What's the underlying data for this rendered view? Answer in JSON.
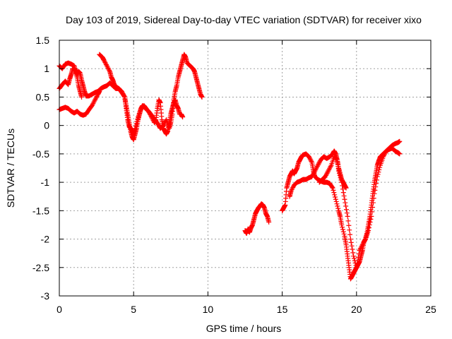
{
  "chart_data": {
    "type": "scatter",
    "title": "Day 103 of 2019, Sidereal Day-to-day VTEC variation (SDTVAR) for receiver xixo",
    "xlabel": "GPS time / hours",
    "ylabel": "SDTVAR / TECUs",
    "xlim": [
      0,
      25
    ],
    "ylim": [
      -3,
      1.5
    ],
    "xticks": [
      "0",
      "5",
      "10",
      "15",
      "20",
      "25"
    ],
    "yticks": [
      "1.5",
      "1",
      "0.5",
      "0",
      "-0.5",
      "-1",
      "-1.5",
      "-2",
      "-2.5",
      "-3"
    ],
    "grid": true,
    "marker": "plus",
    "color": "#ff0000",
    "series": [
      {
        "points": [
          [
            0.0,
            1.05
          ],
          [
            0.2,
            1.0
          ],
          [
            0.4,
            1.08
          ],
          [
            0.6,
            1.1
          ],
          [
            0.8,
            1.08
          ],
          [
            1.0,
            1.05
          ],
          [
            1.1,
            0.95
          ],
          [
            1.2,
            0.85
          ],
          [
            1.3,
            0.7
          ],
          [
            1.4,
            0.6
          ],
          [
            1.5,
            0.5
          ]
        ]
      },
      {
        "points": [
          [
            0.0,
            0.65
          ],
          [
            0.2,
            0.72
          ],
          [
            0.4,
            0.78
          ],
          [
            0.6,
            0.72
          ],
          [
            0.7,
            0.82
          ],
          [
            0.8,
            0.9
          ],
          [
            0.9,
            1.0
          ],
          [
            1.0,
            1.0
          ],
          [
            1.1,
            0.97
          ],
          [
            1.2,
            0.9
          ],
          [
            1.3,
            0.95
          ],
          [
            1.4,
            0.92
          ],
          [
            1.5,
            0.8
          ],
          [
            1.6,
            0.7
          ],
          [
            1.7,
            0.6
          ],
          [
            1.8,
            0.52
          ],
          [
            2.0,
            0.52
          ],
          [
            2.2,
            0.55
          ],
          [
            2.4,
            0.58
          ],
          [
            2.6,
            0.6
          ],
          [
            2.8,
            0.65
          ],
          [
            3.0,
            0.68
          ],
          [
            3.2,
            0.7
          ],
          [
            3.4,
            0.75
          ],
          [
            3.6,
            0.7
          ],
          [
            3.8,
            0.65
          ],
          [
            4.0,
            0.65
          ],
          [
            4.2,
            0.6
          ],
          [
            4.4,
            0.5
          ],
          [
            4.5,
            0.35
          ],
          [
            4.6,
            0.2
          ],
          [
            4.7,
            0.05
          ],
          [
            4.8,
            -0.1
          ],
          [
            4.9,
            -0.2
          ],
          [
            5.0,
            -0.25
          ],
          [
            5.1,
            -0.15
          ],
          [
            5.2,
            -0.05
          ],
          [
            5.3,
            0.1
          ],
          [
            5.4,
            0.2
          ],
          [
            5.5,
            0.3
          ],
          [
            5.6,
            0.35
          ],
          [
            5.8,
            0.3
          ],
          [
            6.0,
            0.25
          ],
          [
            6.2,
            0.15
          ],
          [
            6.4,
            0.05
          ],
          [
            6.5,
            0.1
          ],
          [
            6.6,
            0.3
          ],
          [
            6.7,
            0.45
          ],
          [
            6.8,
            0.4
          ],
          [
            6.9,
            0.1
          ],
          [
            7.0,
            -0.05
          ],
          [
            7.1,
            -0.1
          ],
          [
            7.2,
            -0.15
          ],
          [
            7.3,
            -0.1
          ],
          [
            7.4,
            0.05
          ],
          [
            7.5,
            0.2
          ],
          [
            7.6,
            0.3
          ],
          [
            7.7,
            0.4
          ],
          [
            7.8,
            0.45
          ],
          [
            7.9,
            0.35
          ],
          [
            8.0,
            0.3
          ],
          [
            8.1,
            0.2
          ],
          [
            8.2,
            0.2
          ],
          [
            8.3,
            0.15
          ]
        ]
      },
      {
        "points": [
          [
            0.0,
            0.28
          ],
          [
            0.2,
            0.3
          ],
          [
            0.4,
            0.32
          ],
          [
            0.6,
            0.3
          ],
          [
            0.8,
            0.25
          ],
          [
            1.0,
            0.22
          ],
          [
            1.2,
            0.25
          ],
          [
            1.4,
            0.2
          ],
          [
            1.6,
            0.18
          ],
          [
            1.8,
            0.2
          ],
          [
            2.0,
            0.28
          ],
          [
            2.2,
            0.35
          ],
          [
            2.4,
            0.45
          ],
          [
            2.6,
            0.55
          ],
          [
            2.7,
            0.6
          ]
        ]
      },
      {
        "points": [
          [
            2.7,
            1.25
          ],
          [
            2.9,
            1.2
          ],
          [
            3.0,
            1.15
          ],
          [
            3.2,
            1.05
          ],
          [
            3.4,
            0.95
          ],
          [
            3.5,
            0.85
          ],
          [
            3.6,
            0.8
          ],
          [
            3.7,
            0.72
          ],
          [
            3.8,
            0.68
          ],
          [
            4.0,
            0.65
          ],
          [
            4.2,
            0.58
          ],
          [
            4.4,
            0.5
          ],
          [
            4.5,
            0.3
          ],
          [
            4.6,
            0.1
          ],
          [
            4.7,
            -0.02
          ],
          [
            4.8,
            -0.05
          ],
          [
            4.9,
            -0.1
          ],
          [
            5.0,
            -0.15
          ],
          [
            5.1,
            -0.05
          ],
          [
            5.3,
            0.15
          ],
          [
            5.5,
            0.3
          ],
          [
            5.7,
            0.35
          ],
          [
            5.9,
            0.28
          ],
          [
            6.1,
            0.22
          ],
          [
            6.3,
            0.15
          ],
          [
            6.5,
            0.08
          ],
          [
            6.7,
            0.0
          ],
          [
            6.8,
            -0.05
          ],
          [
            7.0,
            0.0
          ],
          [
            7.2,
            0.1
          ],
          [
            7.4,
            -0.05
          ],
          [
            7.5,
            0.05
          ],
          [
            7.6,
            0.2
          ],
          [
            7.7,
            0.45
          ],
          [
            7.8,
            0.6
          ],
          [
            7.9,
            0.7
          ],
          [
            8.0,
            0.85
          ],
          [
            8.1,
            0.95
          ],
          [
            8.2,
            1.05
          ],
          [
            8.3,
            1.15
          ],
          [
            8.4,
            1.25
          ],
          [
            8.5,
            1.2
          ],
          [
            8.6,
            1.1
          ],
          [
            8.8,
            1.05
          ],
          [
            9.0,
            1.0
          ],
          [
            9.1,
            0.95
          ],
          [
            9.2,
            0.85
          ],
          [
            9.3,
            0.75
          ],
          [
            9.4,
            0.65
          ],
          [
            9.5,
            0.55
          ],
          [
            9.6,
            0.5
          ]
        ]
      },
      {
        "points": [
          [
            12.5,
            -1.85
          ],
          [
            12.6,
            -1.9
          ],
          [
            12.7,
            -1.82
          ],
          [
            12.8,
            -1.88
          ],
          [
            12.9,
            -1.8
          ],
          [
            13.0,
            -1.75
          ],
          [
            13.1,
            -1.65
          ],
          [
            13.2,
            -1.55
          ],
          [
            13.3,
            -1.5
          ],
          [
            13.4,
            -1.45
          ],
          [
            13.5,
            -1.42
          ],
          [
            13.6,
            -1.38
          ],
          [
            13.7,
            -1.4
          ],
          [
            13.8,
            -1.45
          ],
          [
            13.9,
            -1.55
          ],
          [
            14.0,
            -1.6
          ],
          [
            14.1,
            -1.7
          ]
        ]
      },
      {
        "points": [
          [
            15.0,
            -1.5
          ],
          [
            15.1,
            -1.45
          ],
          [
            15.2,
            -1.4
          ],
          [
            15.3,
            -1.1
          ],
          [
            15.4,
            -1.0
          ],
          [
            15.5,
            -0.9
          ],
          [
            15.6,
            -0.85
          ],
          [
            15.7,
            -0.8
          ],
          [
            15.8,
            -0.85
          ],
          [
            15.9,
            -0.8
          ],
          [
            16.0,
            -0.75
          ],
          [
            16.1,
            -0.65
          ],
          [
            16.2,
            -0.6
          ],
          [
            16.3,
            -0.55
          ],
          [
            16.4,
            -0.52
          ],
          [
            16.6,
            -0.5
          ],
          [
            16.8,
            -0.55
          ],
          [
            17.0,
            -0.65
          ],
          [
            17.1,
            -0.8
          ],
          [
            17.2,
            -0.9
          ],
          [
            17.4,
            -0.95
          ],
          [
            17.6,
            -0.98
          ],
          [
            17.8,
            -1.0
          ],
          [
            18.0,
            -1.0
          ],
          [
            18.2,
            -1.02
          ],
          [
            18.4,
            -1.1
          ],
          [
            18.6,
            -1.3
          ],
          [
            18.8,
            -1.5
          ],
          [
            18.9,
            -1.6
          ],
          [
            19.0,
            -1.75
          ],
          [
            19.2,
            -1.95
          ],
          [
            19.3,
            -2.1
          ],
          [
            19.4,
            -2.3
          ],
          [
            19.5,
            -2.5
          ],
          [
            19.6,
            -2.7
          ],
          [
            19.7,
            -2.65
          ],
          [
            19.8,
            -2.6
          ],
          [
            19.9,
            -2.55
          ],
          [
            20.0,
            -2.5
          ],
          [
            20.1,
            -2.45
          ],
          [
            20.2,
            -2.4
          ],
          [
            20.3,
            -2.3
          ],
          [
            20.4,
            -2.2
          ],
          [
            20.5,
            -2.05
          ],
          [
            20.6,
            -2.0
          ],
          [
            20.7,
            -1.9
          ],
          [
            20.8,
            -1.75
          ],
          [
            20.9,
            -1.6
          ],
          [
            21.0,
            -1.4
          ],
          [
            21.1,
            -1.2
          ],
          [
            21.2,
            -1.0
          ],
          [
            21.3,
            -0.85
          ],
          [
            21.4,
            -0.7
          ],
          [
            21.5,
            -0.62
          ],
          [
            21.6,
            -0.55
          ],
          [
            21.8,
            -0.5
          ],
          [
            22.0,
            -0.45
          ],
          [
            22.2,
            -0.42
          ],
          [
            22.4,
            -0.4
          ],
          [
            22.6,
            -0.45
          ],
          [
            22.8,
            -0.48
          ],
          [
            22.9,
            -0.5
          ]
        ]
      },
      {
        "points": [
          [
            15.5,
            -1.25
          ],
          [
            15.6,
            -1.15
          ],
          [
            15.8,
            -1.05
          ],
          [
            16.0,
            -1.0
          ],
          [
            16.2,
            -0.98
          ],
          [
            16.4,
            -0.95
          ],
          [
            16.6,
            -0.95
          ],
          [
            16.8,
            -0.92
          ],
          [
            17.0,
            -0.9
          ],
          [
            17.2,
            -0.8
          ],
          [
            17.4,
            -0.7
          ],
          [
            17.6,
            -0.6
          ],
          [
            17.8,
            -0.55
          ],
          [
            18.0,
            -0.58
          ],
          [
            18.2,
            -0.55
          ],
          [
            18.4,
            -0.5
          ],
          [
            18.5,
            -0.45
          ],
          [
            18.6,
            -0.5
          ],
          [
            18.7,
            -0.6
          ],
          [
            18.8,
            -0.75
          ],
          [
            18.9,
            -0.85
          ],
          [
            19.0,
            -0.95
          ],
          [
            19.1,
            -1.0
          ],
          [
            19.2,
            -1.05
          ],
          [
            19.3,
            -1.1
          ]
        ]
      },
      {
        "points": [
          [
            17.5,
            -1.0
          ],
          [
            17.7,
            -0.95
          ],
          [
            17.9,
            -0.9
          ],
          [
            18.1,
            -0.8
          ],
          [
            18.3,
            -0.7
          ],
          [
            18.5,
            -0.55
          ],
          [
            18.7,
            -0.6
          ],
          [
            18.8,
            -0.8
          ],
          [
            19.0,
            -1.0
          ],
          [
            19.2,
            -1.3
          ],
          [
            19.4,
            -1.6
          ],
          [
            19.6,
            -2.0
          ],
          [
            19.8,
            -2.3
          ],
          [
            20.0,
            -2.5
          ],
          [
            20.2,
            -2.2
          ],
          [
            20.4,
            -2.1
          ],
          [
            20.6,
            -2.0
          ],
          [
            20.8,
            -1.85
          ],
          [
            21.0,
            -1.6
          ],
          [
            21.2,
            -1.2
          ],
          [
            21.4,
            -0.9
          ],
          [
            21.6,
            -0.7
          ],
          [
            21.8,
            -0.55
          ],
          [
            22.0,
            -0.45
          ],
          [
            22.2,
            -0.4
          ],
          [
            22.4,
            -0.35
          ],
          [
            22.6,
            -0.32
          ],
          [
            22.8,
            -0.3
          ],
          [
            22.9,
            -0.28
          ]
        ]
      }
    ]
  }
}
